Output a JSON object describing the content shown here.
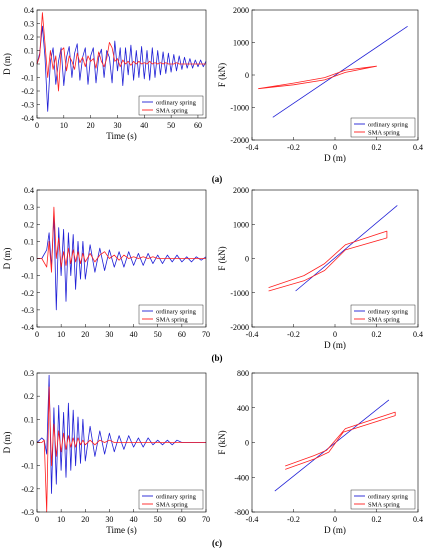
{
  "figure": {
    "panel_labels": [
      "(a)",
      "(b)",
      "(c)"
    ],
    "colors": {
      "ordinary": "#1f1fd6",
      "sma": "#ff2020"
    }
  },
  "chart_data": [
    {
      "id": "a-time",
      "type": "line",
      "xlabel": "Time (s)",
      "ylabel": "D (m)",
      "xlim": [
        0,
        63
      ],
      "ylim": [
        -0.4,
        0.4
      ],
      "xticks": [
        0,
        10,
        20,
        30,
        40,
        50,
        60
      ],
      "yticks": [
        -0.4,
        -0.3,
        -0.2,
        -0.1,
        0,
        0.1,
        0.2,
        0.3,
        0.4
      ],
      "legend": [
        "ordinary spring",
        "SMA spring"
      ],
      "legend_position": "bottom-right",
      "series": [
        {
          "name": "ordinary spring",
          "color": "#1f1fd6",
          "x": [
            0,
            1,
            2,
            3,
            4,
            5,
            6,
            7,
            8,
            9,
            10,
            11,
            12,
            13,
            14,
            15,
            16,
            17,
            18,
            19,
            20,
            21,
            22,
            23,
            24,
            25,
            26,
            27,
            28,
            29,
            30,
            31,
            32,
            33,
            34,
            35,
            36,
            37,
            38,
            39,
            40,
            41,
            42,
            43,
            44,
            45,
            46,
            47,
            48,
            49,
            50,
            51,
            52,
            53,
            54,
            55,
            56,
            57,
            58,
            59,
            60,
            61,
            62,
            63
          ],
          "y": [
            0,
            0.08,
            0.28,
            0.05,
            -0.35,
            0.02,
            0.12,
            -0.15,
            0.02,
            0.12,
            -0.16,
            0.05,
            0.13,
            -0.1,
            0.08,
            0.15,
            -0.12,
            0.05,
            0.12,
            -0.15,
            0.06,
            0.12,
            -0.14,
            0.05,
            0.11,
            -0.1,
            0.1,
            0.05,
            -0.14,
            0.17,
            -0.05,
            0.12,
            -0.16,
            0.12,
            -0.08,
            0.14,
            -0.12,
            0.1,
            -0.1,
            0.13,
            -0.11,
            0.1,
            -0.12,
            0.12,
            -0.1,
            0.1,
            -0.08,
            0.09,
            -0.07,
            0.08,
            -0.06,
            0.07,
            -0.05,
            0.06,
            -0.04,
            0.05,
            -0.03,
            0.04,
            -0.03,
            0.03,
            -0.02,
            0.03,
            -0.02,
            0.02
          ]
        },
        {
          "name": "SMA spring",
          "color": "#ff2020",
          "x": [
            0,
            1,
            2,
            3,
            4,
            5,
            6,
            7,
            8,
            9,
            10,
            11,
            12,
            13,
            14,
            15,
            16,
            17,
            18,
            19,
            20,
            21,
            22,
            23,
            24,
            25,
            26,
            27,
            28,
            29,
            30,
            31,
            32,
            33,
            34,
            35,
            36,
            37,
            38,
            39,
            40,
            41,
            42,
            43,
            44,
            45,
            46,
            47,
            48,
            49,
            50,
            51,
            52,
            53,
            54,
            55,
            56,
            57,
            58,
            59,
            60,
            61,
            62,
            63
          ],
          "y": [
            0,
            0.06,
            0.38,
            0.15,
            -0.1,
            0.1,
            -0.04,
            0.06,
            -0.2,
            0.1,
            0.12,
            -0.05,
            0.06,
            0.02,
            -0.04,
            0.08,
            0.01,
            0.05,
            -0.02,
            0.06,
            0.02,
            0.04,
            -0.03,
            0.09,
            0.02,
            -0.02,
            0.04,
            0.16,
            0.12,
            0.02,
            0.04,
            -0.02,
            0.03,
            0.0,
            0.02,
            -0.01,
            0.02,
            0.0,
            0.02,
            0.0,
            0.01,
            0.0,
            0.02,
            0.0,
            0.01,
            0.0,
            0.01,
            0.0,
            0.01,
            0.0,
            0.0,
            0.0,
            0.01,
            0.0,
            0.0,
            0.0,
            0.0,
            0.0,
            0.0,
            0.0,
            0.0,
            0.0,
            0.0,
            0.0
          ]
        }
      ]
    },
    {
      "id": "a-hyst",
      "type": "line",
      "xlabel": "D (m)",
      "ylabel": "F (kN)",
      "xlim": [
        -0.4,
        0.4
      ],
      "ylim": [
        -2000,
        2000
      ],
      "xticks": [
        -0.4,
        -0.2,
        0,
        0.2,
        0.4
      ],
      "yticks": [
        -2000,
        -1000,
        0,
        1000,
        2000
      ],
      "legend": [
        "ordinary spring",
        "SMA spring"
      ],
      "legend_position": "bottom-right",
      "series": [
        {
          "name": "ordinary spring",
          "color": "#1f1fd6",
          "x": [
            -0.3,
            0.35
          ],
          "y": [
            -1300,
            1500
          ]
        },
        {
          "name": "SMA spring",
          "color": "#ff2020",
          "x": [
            -0.37,
            -0.2,
            -0.05,
            0.05,
            0.2,
            0.05,
            -0.05,
            -0.2,
            -0.37
          ],
          "y": [
            -420,
            -300,
            -150,
            80,
            270,
            150,
            -80,
            -250,
            -420
          ]
        }
      ]
    },
    {
      "id": "b-time",
      "type": "line",
      "xlabel": "",
      "ylabel": "D (m)",
      "xlim": [
        0,
        70
      ],
      "ylim": [
        -0.4,
        0.4
      ],
      "xticks": [
        0,
        10,
        20,
        30,
        40,
        50,
        60,
        70
      ],
      "yticks": [
        -0.4,
        -0.3,
        -0.2,
        -0.1,
        0,
        0.1,
        0.2,
        0.3,
        0.4
      ],
      "legend": [
        "ordinary spring",
        "SMA spring"
      ],
      "legend_position": "bottom-right",
      "series": [
        {
          "name": "ordinary spring",
          "color": "#1f1fd6",
          "x": [
            0,
            2,
            4,
            5,
            6,
            7,
            8,
            9,
            10,
            11,
            12,
            13,
            14,
            15,
            16,
            17,
            18,
            19,
            20,
            22,
            24,
            26,
            28,
            30,
            32,
            34,
            36,
            38,
            40,
            42,
            44,
            46,
            48,
            50,
            52,
            54,
            56,
            58,
            60,
            62,
            64,
            66,
            68,
            70
          ],
          "y": [
            0,
            0.0,
            0.05,
            0.15,
            -0.05,
            0.25,
            -0.3,
            0.18,
            -0.1,
            0.17,
            -0.25,
            0.15,
            -0.1,
            0.14,
            -0.18,
            0.1,
            -0.12,
            0.1,
            -0.12,
            0.08,
            -0.08,
            0.06,
            -0.07,
            0.05,
            -0.05,
            0.04,
            -0.05,
            0.04,
            -0.04,
            0.03,
            -0.04,
            0.03,
            -0.03,
            0.02,
            -0.03,
            0.02,
            -0.02,
            0.02,
            -0.02,
            0.01,
            -0.02,
            0.01,
            -0.01,
            0.01
          ]
        },
        {
          "name": "SMA spring",
          "color": "#ff2020",
          "x": [
            0,
            2,
            4,
            5,
            6,
            7,
            8,
            9,
            10,
            11,
            12,
            13,
            14,
            15,
            16,
            17,
            18,
            19,
            20,
            22,
            24,
            26,
            28,
            30,
            32,
            34,
            36,
            38,
            40,
            42,
            44,
            46,
            48,
            50,
            52,
            54,
            56,
            58,
            60,
            62,
            64,
            66,
            68,
            70
          ],
          "y": [
            0,
            0.0,
            -0.05,
            0.1,
            -0.08,
            0.3,
            0.0,
            0.12,
            -0.05,
            0.04,
            -0.04,
            0.06,
            -0.03,
            0.05,
            -0.02,
            0.04,
            -0.03,
            0.03,
            -0.02,
            0.03,
            -0.02,
            0.02,
            0.04,
            0.0,
            0.02,
            -0.01,
            0.02,
            0.0,
            0.01,
            0.0,
            0.01,
            0.0,
            0.01,
            0.0,
            0.0,
            0.0,
            0.0,
            0.0,
            0.0,
            0.0,
            0.0,
            0.0,
            0.0,
            0.0
          ]
        }
      ]
    },
    {
      "id": "b-hyst",
      "type": "line",
      "xlabel": "D (m)",
      "ylabel": "F (kN)",
      "xlim": [
        -0.4,
        0.4
      ],
      "ylim": [
        -2000,
        2000
      ],
      "xticks": [
        -0.4,
        -0.2,
        0,
        0.2,
        0.4
      ],
      "yticks": [
        -2000,
        -1000,
        0,
        1000,
        2000
      ],
      "legend": [
        "ordinary spring",
        "SMA spring"
      ],
      "legend_position": "bottom-right",
      "series": [
        {
          "name": "ordinary spring",
          "color": "#1f1fd6",
          "x": [
            -0.19,
            0.3
          ],
          "y": [
            -950,
            1550
          ]
        },
        {
          "name": "SMA spring",
          "color": "#ff2020",
          "x": [
            -0.32,
            -0.15,
            -0.05,
            0.05,
            0.25,
            0.25,
            0.05,
            -0.05,
            -0.15,
            -0.32
          ],
          "y": [
            -950,
            -650,
            -350,
            250,
            600,
            800,
            400,
            -150,
            -500,
            -850
          ]
        }
      ]
    },
    {
      "id": "c-time",
      "type": "line",
      "xlabel": "Time (s)",
      "ylabel": "D (m)",
      "xlim": [
        0,
        70
      ],
      "ylim": [
        -0.3,
        0.3
      ],
      "xticks": [
        0,
        10,
        20,
        30,
        40,
        50,
        60,
        70
      ],
      "yticks": [
        -0.3,
        -0.2,
        -0.1,
        0,
        0.1,
        0.2,
        0.3
      ],
      "legend": [
        "ordinary spring",
        "SMA spring"
      ],
      "legend_position": "bottom-right",
      "series": [
        {
          "name": "ordinary spring",
          "color": "#1f1fd6",
          "x": [
            0,
            2,
            3,
            4,
            5,
            6,
            7,
            8,
            9,
            10,
            11,
            12,
            13,
            14,
            15,
            16,
            17,
            18,
            19,
            20,
            22,
            24,
            26,
            28,
            30,
            32,
            34,
            36,
            38,
            40,
            42,
            44,
            46,
            48,
            50,
            52,
            54,
            56,
            58,
            60,
            62,
            64,
            66,
            68,
            70
          ],
          "y": [
            0,
            0.02,
            0.01,
            -0.05,
            0.29,
            -0.22,
            0.15,
            -0.18,
            0.16,
            -0.12,
            0.13,
            -0.15,
            0.17,
            -0.12,
            0.14,
            -0.1,
            0.11,
            -0.09,
            0.1,
            -0.08,
            0.07,
            -0.06,
            0.05,
            -0.05,
            0.04,
            -0.04,
            0.03,
            -0.03,
            0.03,
            -0.02,
            0.02,
            -0.02,
            0.02,
            -0.01,
            0.01,
            -0.01,
            0.01,
            -0.01,
            0.01,
            0.0,
            0.0,
            0.0,
            0.0,
            0.0,
            0.0
          ]
        },
        {
          "name": "SMA spring",
          "color": "#ff2020",
          "x": [
            0,
            2,
            3,
            4,
            5,
            6,
            7,
            8,
            9,
            10,
            11,
            12,
            13,
            14,
            15,
            16,
            17,
            18,
            19,
            20,
            22,
            24,
            26,
            28,
            30,
            32,
            34,
            36,
            38,
            40,
            42,
            44,
            46,
            48,
            50,
            52,
            54,
            56,
            58,
            60,
            62,
            64,
            66,
            68,
            70
          ],
          "y": [
            0,
            0.0,
            0.01,
            -0.3,
            0.24,
            -0.1,
            0.08,
            -0.06,
            0.05,
            -0.04,
            0.04,
            -0.03,
            0.03,
            -0.02,
            0.02,
            -0.02,
            0.02,
            -0.01,
            0.01,
            -0.01,
            0.01,
            -0.01,
            0.01,
            0.0,
            0.01,
            0.0,
            0.0,
            0.0,
            0.0,
            0.0,
            0.0,
            0.0,
            0.0,
            0.0,
            0.0,
            0.0,
            0.0,
            0.0,
            0.0,
            0.0,
            0.0,
            0.0,
            0.0,
            0.0,
            0.0
          ]
        }
      ]
    },
    {
      "id": "c-hyst",
      "type": "line",
      "xlabel": "D (m)",
      "ylabel": "F (kN)",
      "xlim": [
        -0.4,
        0.4
      ],
      "ylim": [
        -800,
        800
      ],
      "xticks": [
        -0.4,
        -0.2,
        0,
        0.2,
        0.4
      ],
      "yticks": [
        -800,
        -400,
        0,
        400,
        800
      ],
      "legend": [
        "ordinary spring",
        "SMA spring"
      ],
      "legend_position": "bottom-right",
      "series": [
        {
          "name": "ordinary spring",
          "color": "#1f1fd6",
          "x": [
            -0.29,
            0.26
          ],
          "y": [
            -560,
            490
          ]
        },
        {
          "name": "SMA spring",
          "color": "#ff2020",
          "x": [
            -0.24,
            -0.1,
            -0.03,
            0.04,
            0.29,
            0.29,
            0.05,
            -0.04,
            -0.1,
            -0.24
          ],
          "y": [
            -310,
            -190,
            -110,
            120,
            310,
            350,
            160,
            -90,
            -150,
            -270
          ]
        }
      ]
    }
  ]
}
